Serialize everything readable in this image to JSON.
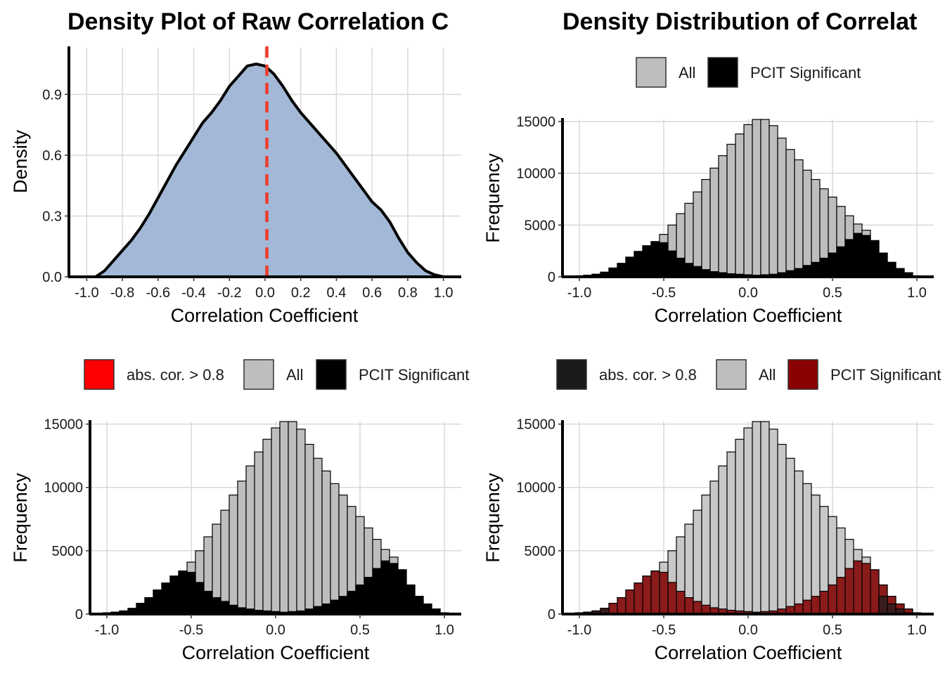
{
  "chart_data": [
    {
      "type": "area",
      "title": "Density Plot of Raw Correlation C",
      "xlabel": "Correlation Coefficient",
      "ylabel": "Density",
      "xlim": [
        -1.1,
        1.1
      ],
      "ylim": [
        0,
        1.13
      ],
      "x_ticks": [
        -1.0,
        -0.8,
        -0.6,
        -0.4,
        -0.2,
        0.0,
        0.2,
        0.4,
        0.6,
        0.8,
        1.0
      ],
      "x_tick_labels": [
        "-1.0",
        "-0.8",
        "-0.6",
        "-0.4",
        "-0.2",
        "0.0",
        "0.2",
        "0.4",
        "0.6",
        "0.8",
        "1.0"
      ],
      "y_ticks": [
        0.0,
        0.3,
        0.6,
        0.9
      ],
      "y_tick_labels": [
        "0.0",
        "0.3",
        "0.6",
        "0.9"
      ],
      "grid": true,
      "fill_color": "#a2b8d6",
      "line_color": "#000000",
      "reference_line": {
        "x": 0.01,
        "color": "#ee3b2d",
        "style": "dashed"
      },
      "x": [
        -1.0,
        -0.95,
        -0.9,
        -0.85,
        -0.8,
        -0.75,
        -0.7,
        -0.65,
        -0.6,
        -0.55,
        -0.5,
        -0.45,
        -0.4,
        -0.35,
        -0.3,
        -0.25,
        -0.2,
        -0.15,
        -0.1,
        -0.05,
        0.0,
        0.05,
        0.1,
        0.15,
        0.2,
        0.25,
        0.3,
        0.35,
        0.4,
        0.45,
        0.5,
        0.55,
        0.6,
        0.65,
        0.7,
        0.75,
        0.8,
        0.85,
        0.9,
        0.95,
        1.0
      ],
      "y": [
        0.0,
        0.0,
        0.03,
        0.08,
        0.13,
        0.18,
        0.24,
        0.31,
        0.39,
        0.47,
        0.55,
        0.62,
        0.69,
        0.76,
        0.81,
        0.87,
        0.94,
        0.99,
        1.04,
        1.05,
        1.04,
        1.0,
        0.94,
        0.87,
        0.81,
        0.76,
        0.71,
        0.66,
        0.61,
        0.55,
        0.49,
        0.43,
        0.37,
        0.33,
        0.27,
        0.19,
        0.12,
        0.07,
        0.03,
        0.01,
        0.0
      ]
    },
    {
      "type": "bar",
      "title": "Density Distribution of Correlat",
      "xlabel": "Correlation Coefficient",
      "ylabel": "Frequency",
      "xlim": [
        -1.1,
        1.1
      ],
      "ylim": [
        0,
        15200
      ],
      "x_ticks": [
        -1.0,
        -0.5,
        0.0,
        0.5,
        1.0
      ],
      "x_tick_labels": [
        "-1.0",
        "-0.5",
        "0.0",
        "0.5",
        "1.0"
      ],
      "y_ticks": [
        0,
        5000,
        10000,
        15000
      ],
      "y_tick_labels": [
        "0",
        "5000",
        "10000",
        "15000"
      ],
      "grid": true,
      "legend_position": "top",
      "legend": [
        {
          "label": "All",
          "color": "#bebebe"
        },
        {
          "label": "PCIT Significant",
          "color": "#000000"
        }
      ],
      "bin_width": 0.05,
      "bin_start": -1.0,
      "series": [
        {
          "name": "All",
          "color": "#bebebe",
          "values": [
            100,
            150,
            250,
            450,
            850,
            1300,
            1900,
            2450,
            3000,
            3400,
            4100,
            5000,
            6100,
            7100,
            8200,
            9400,
            10500,
            11700,
            12800,
            13800,
            14700,
            15200,
            15200,
            14600,
            13400,
            12300,
            11300,
            10300,
            9400,
            8500,
            7700,
            6800,
            5900,
            5100,
            4500,
            3500,
            2300,
            1400,
            800,
            400,
            100
          ]
        },
        {
          "name": "PCIT Significant",
          "color": "#000000",
          "values": [
            100,
            150,
            250,
            450,
            850,
            1300,
            1900,
            2450,
            3000,
            3400,
            3300,
            2500,
            1800,
            1300,
            1000,
            700,
            500,
            400,
            300,
            250,
            200,
            150,
            200,
            250,
            400,
            600,
            800,
            1100,
            1400,
            1800,
            2300,
            2900,
            3600,
            4200,
            4000,
            3500,
            2300,
            1400,
            800,
            400,
            100
          ]
        }
      ]
    },
    {
      "type": "bar",
      "xlabel": "Correlation Coefficient",
      "ylabel": "Frequency",
      "xlim": [
        -1.1,
        1.1
      ],
      "ylim": [
        0,
        15200
      ],
      "x_ticks": [
        -1.0,
        -0.5,
        0.0,
        0.5,
        1.0
      ],
      "x_tick_labels": [
        "-1.0",
        "-0.5",
        "0.0",
        "0.5",
        "1.0"
      ],
      "y_ticks": [
        0,
        5000,
        10000,
        15000
      ],
      "y_tick_labels": [
        "0",
        "5000",
        "10000",
        "15000"
      ],
      "grid": true,
      "legend_position": "top",
      "legend": [
        {
          "label": "abs. cor. > 0.8",
          "color": "#ff0000"
        },
        {
          "label": "All",
          "color": "#bebebe"
        },
        {
          "label": "PCIT Significant",
          "color": "#000000"
        }
      ],
      "bin_width": 0.05,
      "bin_start": -1.0,
      "series": [
        {
          "name": "All",
          "color": "#bebebe",
          "values": [
            100,
            150,
            250,
            450,
            850,
            1300,
            1900,
            2450,
            3000,
            3400,
            4100,
            5000,
            6100,
            7100,
            8200,
            9400,
            10500,
            11700,
            12800,
            13800,
            14700,
            15200,
            15200,
            14600,
            13400,
            12300,
            11300,
            10300,
            9400,
            8500,
            7700,
            6800,
            5900,
            5100,
            4500,
            3500,
            2300,
            1400,
            800,
            400,
            100
          ]
        },
        {
          "name": "PCIT Significant",
          "color": "#000000",
          "values": [
            100,
            150,
            250,
            450,
            850,
            1300,
            1900,
            2450,
            3000,
            3400,
            3300,
            2500,
            1800,
            1300,
            1000,
            700,
            500,
            400,
            300,
            250,
            200,
            150,
            200,
            250,
            400,
            600,
            800,
            1100,
            1400,
            1800,
            2300,
            2900,
            3600,
            4200,
            4000,
            3500,
            2300,
            1400,
            800,
            400,
            100
          ]
        },
        {
          "name": "abs. cor. > 0.8",
          "color": "#ff0000",
          "values": [
            0,
            0,
            0,
            0,
            0,
            0,
            0,
            0,
            0,
            0,
            0,
            0,
            0,
            0,
            0,
            0,
            0,
            0,
            0,
            0,
            0,
            0,
            0,
            0,
            0,
            0,
            0,
            0,
            0,
            0,
            0,
            0,
            0,
            0,
            0,
            0,
            0,
            0,
            0,
            0,
            0
          ]
        }
      ]
    },
    {
      "type": "bar",
      "xlabel": "Correlation Coefficient",
      "ylabel": "Frequency",
      "xlim": [
        -1.1,
        1.1
      ],
      "ylim": [
        0,
        15200
      ],
      "x_ticks": [
        -1.0,
        -0.5,
        0.0,
        0.5,
        1.0
      ],
      "x_tick_labels": [
        "-1.0",
        "-0.5",
        "0.0",
        "0.5",
        "1.0"
      ],
      "y_ticks": [
        0,
        5000,
        10000,
        15000
      ],
      "y_tick_labels": [
        "0",
        "5000",
        "10000",
        "15000"
      ],
      "grid": true,
      "legend_position": "top",
      "legend": [
        {
          "label": "abs. cor. > 0.8",
          "color": "#1a1a1a"
        },
        {
          "label": "All",
          "color": "#bebebe"
        },
        {
          "label": "PCIT Significant",
          "color": "#8b0000"
        }
      ],
      "bin_width": 0.05,
      "bin_start": -1.0,
      "series": [
        {
          "name": "All",
          "color": "#c8c8c8",
          "values": [
            100,
            150,
            250,
            450,
            850,
            1300,
            1900,
            2450,
            3000,
            3400,
            4100,
            5000,
            6100,
            7100,
            8200,
            9400,
            10500,
            11700,
            12800,
            13800,
            14700,
            15200,
            15200,
            14600,
            13400,
            12300,
            11300,
            10300,
            9400,
            8500,
            7700,
            6800,
            5900,
            5100,
            4500,
            3500,
            2300,
            1400,
            800,
            400,
            100
          ]
        },
        {
          "name": "PCIT Significant",
          "color": "#8b1a1a",
          "values": [
            100,
            150,
            250,
            450,
            850,
            1300,
            1900,
            2450,
            3000,
            3400,
            3300,
            2500,
            1800,
            1300,
            1000,
            700,
            500,
            400,
            300,
            250,
            200,
            150,
            200,
            250,
            400,
            600,
            800,
            1100,
            1400,
            1800,
            2300,
            2900,
            3600,
            4200,
            4000,
            3500,
            2300,
            1400,
            800,
            400,
            100
          ]
        },
        {
          "name": "abs. cor. > 0.8",
          "color": "#3a1c1c",
          "values": [
            100,
            150,
            250,
            450,
            0,
            0,
            0,
            0,
            0,
            0,
            0,
            0,
            0,
            0,
            0,
            0,
            0,
            0,
            0,
            0,
            0,
            0,
            0,
            0,
            0,
            0,
            0,
            0,
            0,
            0,
            0,
            0,
            0,
            0,
            0,
            0,
            1400,
            800,
            400,
            100,
            0
          ]
        }
      ]
    }
  ]
}
